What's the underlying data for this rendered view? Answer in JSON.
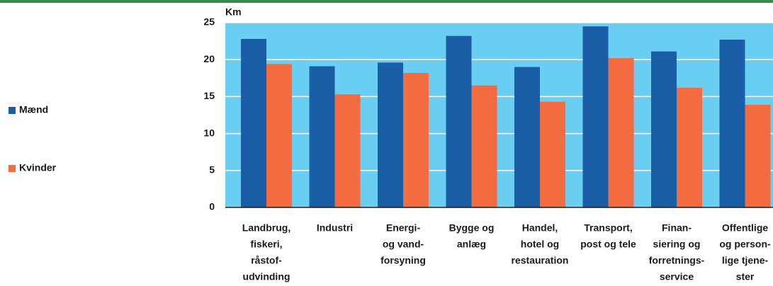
{
  "chart_data": {
    "type": "bar",
    "y_label": "Km",
    "categories": [
      [
        "Landbrug,",
        "fiskeri,",
        "råstof-",
        "udvinding"
      ],
      [
        "Industri"
      ],
      [
        "Energi-",
        "og vand-",
        "forsyning"
      ],
      [
        "Bygge og",
        "anlæg"
      ],
      [
        "Handel,",
        "hotel og",
        "restauration"
      ],
      [
        "Transport,",
        "post og tele"
      ],
      [
        "Finan-",
        "siering og",
        "forretnings-",
        "service"
      ],
      [
        "Offentlige",
        "og person-",
        "lige tjene-",
        "ster"
      ]
    ],
    "series": [
      {
        "name": "Mænd",
        "color": "#1a5ea8",
        "values": [
          22.8,
          19.1,
          19.6,
          23.2,
          19.0,
          24.5,
          21.1,
          22.7
        ]
      },
      {
        "name": "Kvinder",
        "color": "#f26b41",
        "values": [
          19.4,
          15.3,
          18.2,
          16.5,
          14.3,
          20.2,
          16.2,
          13.9
        ]
      }
    ],
    "ylim": [
      0,
      25
    ],
    "yticks": [
      0,
      5,
      10,
      15,
      20,
      25
    ],
    "grid": true,
    "legend": "left"
  }
}
